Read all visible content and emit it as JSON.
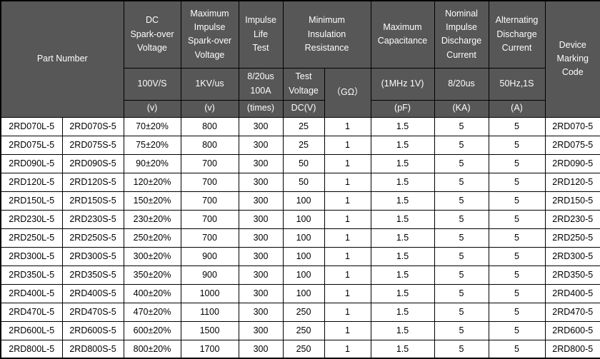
{
  "table": {
    "colors": {
      "header_bg": "#575757",
      "header_text": "#fdfdfd",
      "body_bg": "#ffffff",
      "body_text": "#000000",
      "border": "#000000"
    },
    "header": {
      "part_number": "Part Number",
      "dc_sparkover": {
        "title": "DC\nSpark-over\nVoltage",
        "condition": "100V/S",
        "unit": "(v)"
      },
      "max_impulse_sparkover": {
        "title": "Maximum\nImpulse\nSpark-over\nVoltage",
        "condition": "1KV/us",
        "unit": "(v)"
      },
      "impulse_life_test": {
        "title": "Impulse\nLife\nTest",
        "condition": "8/20us\n100A",
        "unit": "(times)"
      },
      "min_insulation_resistance": {
        "title": "Minimum\nInsulation\nResistance",
        "test_voltage_label": "Test\nVoltage",
        "test_voltage_unit": "DC(V)",
        "resistance_unit": "（GΩ）"
      },
      "max_capacitance": {
        "title": "Maximum\nCapacitance",
        "condition": "(1MHz 1V)",
        "unit": "(pF)"
      },
      "nominal_impulse_discharge": {
        "title": "Nominal\nImpulse\nDischarge\nCurrent",
        "condition": "8/20us",
        "unit": "(KA)"
      },
      "alternating_discharge": {
        "title": "Alternating\nDischarge\nCurrent",
        "condition": "50Hz,1S",
        "unit": "(A)"
      },
      "device_marking_code": "Device\nMarking\nCode"
    },
    "rows": [
      [
        "2RD070L-5",
        "2RD070S-5",
        "70±20%",
        "800",
        "300",
        "25",
        "1",
        "1.5",
        "5",
        "5",
        "2RD070-5"
      ],
      [
        "2RD075L-5",
        "2RD075S-5",
        "75±20%",
        "800",
        "300",
        "25",
        "1",
        "1.5",
        "5",
        "5",
        "2RD075-5"
      ],
      [
        "2RD090L-5",
        "2RD090S-5",
        "90±20%",
        "700",
        "300",
        "50",
        "1",
        "1.5",
        "5",
        "5",
        "2RD090-5"
      ],
      [
        "2RD120L-5",
        "2RD120S-5",
        "120±20%",
        "700",
        "300",
        "50",
        "1",
        "1.5",
        "5",
        "5",
        "2RD120-5"
      ],
      [
        "2RD150L-5",
        "2RD150S-5",
        "150±20%",
        "700",
        "300",
        "100",
        "1",
        "1.5",
        "5",
        "5",
        "2RD150-5"
      ],
      [
        "2RD230L-5",
        "2RD230S-5",
        "230±20%",
        "700",
        "300",
        "100",
        "1",
        "1.5",
        "5",
        "5",
        "2RD230-5"
      ],
      [
        "2RD250L-5",
        "2RD250S-5",
        "250±20%",
        "700",
        "300",
        "100",
        "1",
        "1.5",
        "5",
        "5",
        "2RD250-5"
      ],
      [
        "2RD300L-5",
        "2RD300S-5",
        "300±20%",
        "900",
        "300",
        "100",
        "1",
        "1.5",
        "5",
        "5",
        "2RD300-5"
      ],
      [
        "2RD350L-5",
        "2RD350S-5",
        "350±20%",
        "900",
        "300",
        "100",
        "1",
        "1.5",
        "5",
        "5",
        "2RD350-5"
      ],
      [
        "2RD400L-5",
        "2RD400S-5",
        "400±20%",
        "1000",
        "300",
        "100",
        "1",
        "1.5",
        "5",
        "5",
        "2RD400-5"
      ],
      [
        "2RD470L-5",
        "2RD470S-5",
        "470±20%",
        "1100",
        "300",
        "250",
        "1",
        "1.5",
        "5",
        "5",
        "2RD470-5"
      ],
      [
        "2RD600L-5",
        "2RD600S-5",
        "600±20%",
        "1500",
        "300",
        "250",
        "1",
        "1.5",
        "5",
        "5",
        "2RD600-5"
      ],
      [
        "2RD800L-5",
        "2RD800S-5",
        "800±20%",
        "1700",
        "300",
        "250",
        "1",
        "1.5",
        "5",
        "5",
        "2RD800-5"
      ]
    ]
  }
}
